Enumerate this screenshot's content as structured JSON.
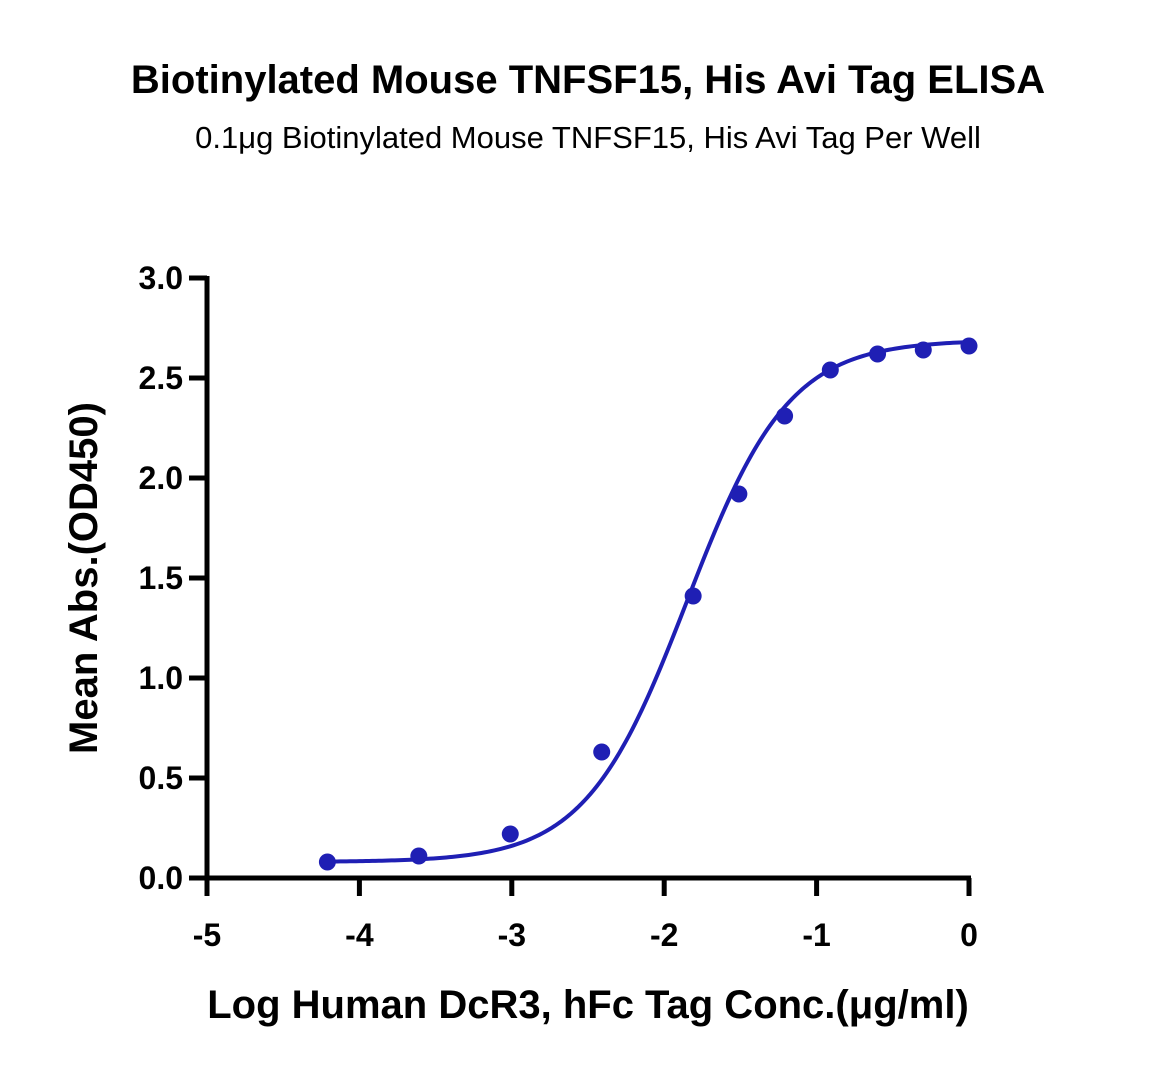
{
  "colors": {
    "series": "#1f1fb4",
    "axis": "#000000"
  },
  "chart_data": {
    "type": "scatter",
    "title": "Biotinylated Mouse TNFSF15, His Avi Tag ELISA",
    "subtitle": "0.1μg Biotinylated Mouse TNFSF15, His Avi Tag Per Well",
    "xlabel": "Log Human DcR3, hFc Tag Conc.(μg/ml)",
    "ylabel": "Mean Abs.(OD450)",
    "xlim": [
      -5,
      0
    ],
    "ylim": [
      0,
      3
    ],
    "xticks": [
      -5,
      -4,
      -3,
      -2,
      -1,
      0
    ],
    "xtick_labels": [
      "-5",
      "-4",
      "-3",
      "-2",
      "-1",
      "0"
    ],
    "yticks": [
      0,
      0.5,
      1,
      1.5,
      2,
      2.5,
      3
    ],
    "ytick_labels": [
      "0.0",
      "0.5",
      "1.0",
      "1.5",
      "2.0",
      "2.5",
      "3.0"
    ],
    "grid": false,
    "legend": "none",
    "series": [
      {
        "x": [
          -4.21,
          -3.61,
          -3.01,
          -2.41,
          -1.81,
          -1.51,
          -1.21,
          -0.91,
          -0.6,
          -0.3,
          0
        ],
        "y": [
          0.08,
          0.11,
          0.22,
          0.63,
          1.41,
          1.92,
          2.31,
          2.54,
          2.62,
          2.64,
          2.66
        ],
        "fit": "4PL sigmoid"
      }
    ]
  }
}
